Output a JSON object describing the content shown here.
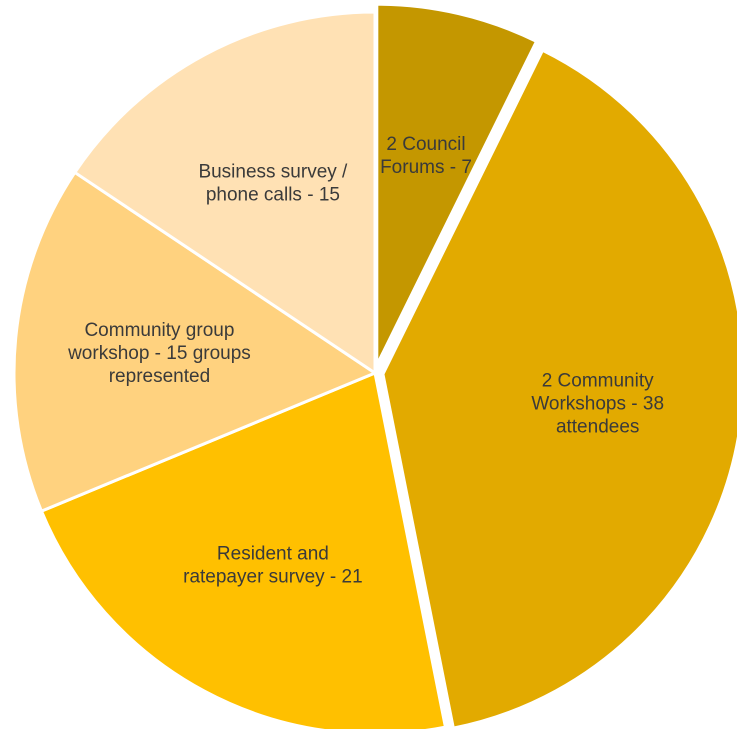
{
  "chart_data": {
    "type": "pie",
    "title": "",
    "legend": "none",
    "slices": [
      {
        "label_lines": [
          "2 Council",
          "Forums - 7"
        ],
        "value": 7,
        "color": "#C49700",
        "exploded": true
      },
      {
        "label_lines": [
          "2 Community",
          "Workshops  - 38",
          "attendees"
        ],
        "value": 38,
        "color": "#E2AA00",
        "exploded": true
      },
      {
        "label_lines": [
          "Resident and",
          "ratepayer survey - 21"
        ],
        "value": 21,
        "color": "#FFC000",
        "exploded": false
      },
      {
        "label_lines": [
          "Community group",
          "workshop - 15 groups",
          "represented"
        ],
        "value": 15,
        "color": "#FFD27F",
        "exploded": false
      },
      {
        "label_lines": [
          "Business survey /",
          "phone calls - 15"
        ],
        "value": 15,
        "color": "#FFE1B4",
        "exploded": false
      }
    ]
  }
}
